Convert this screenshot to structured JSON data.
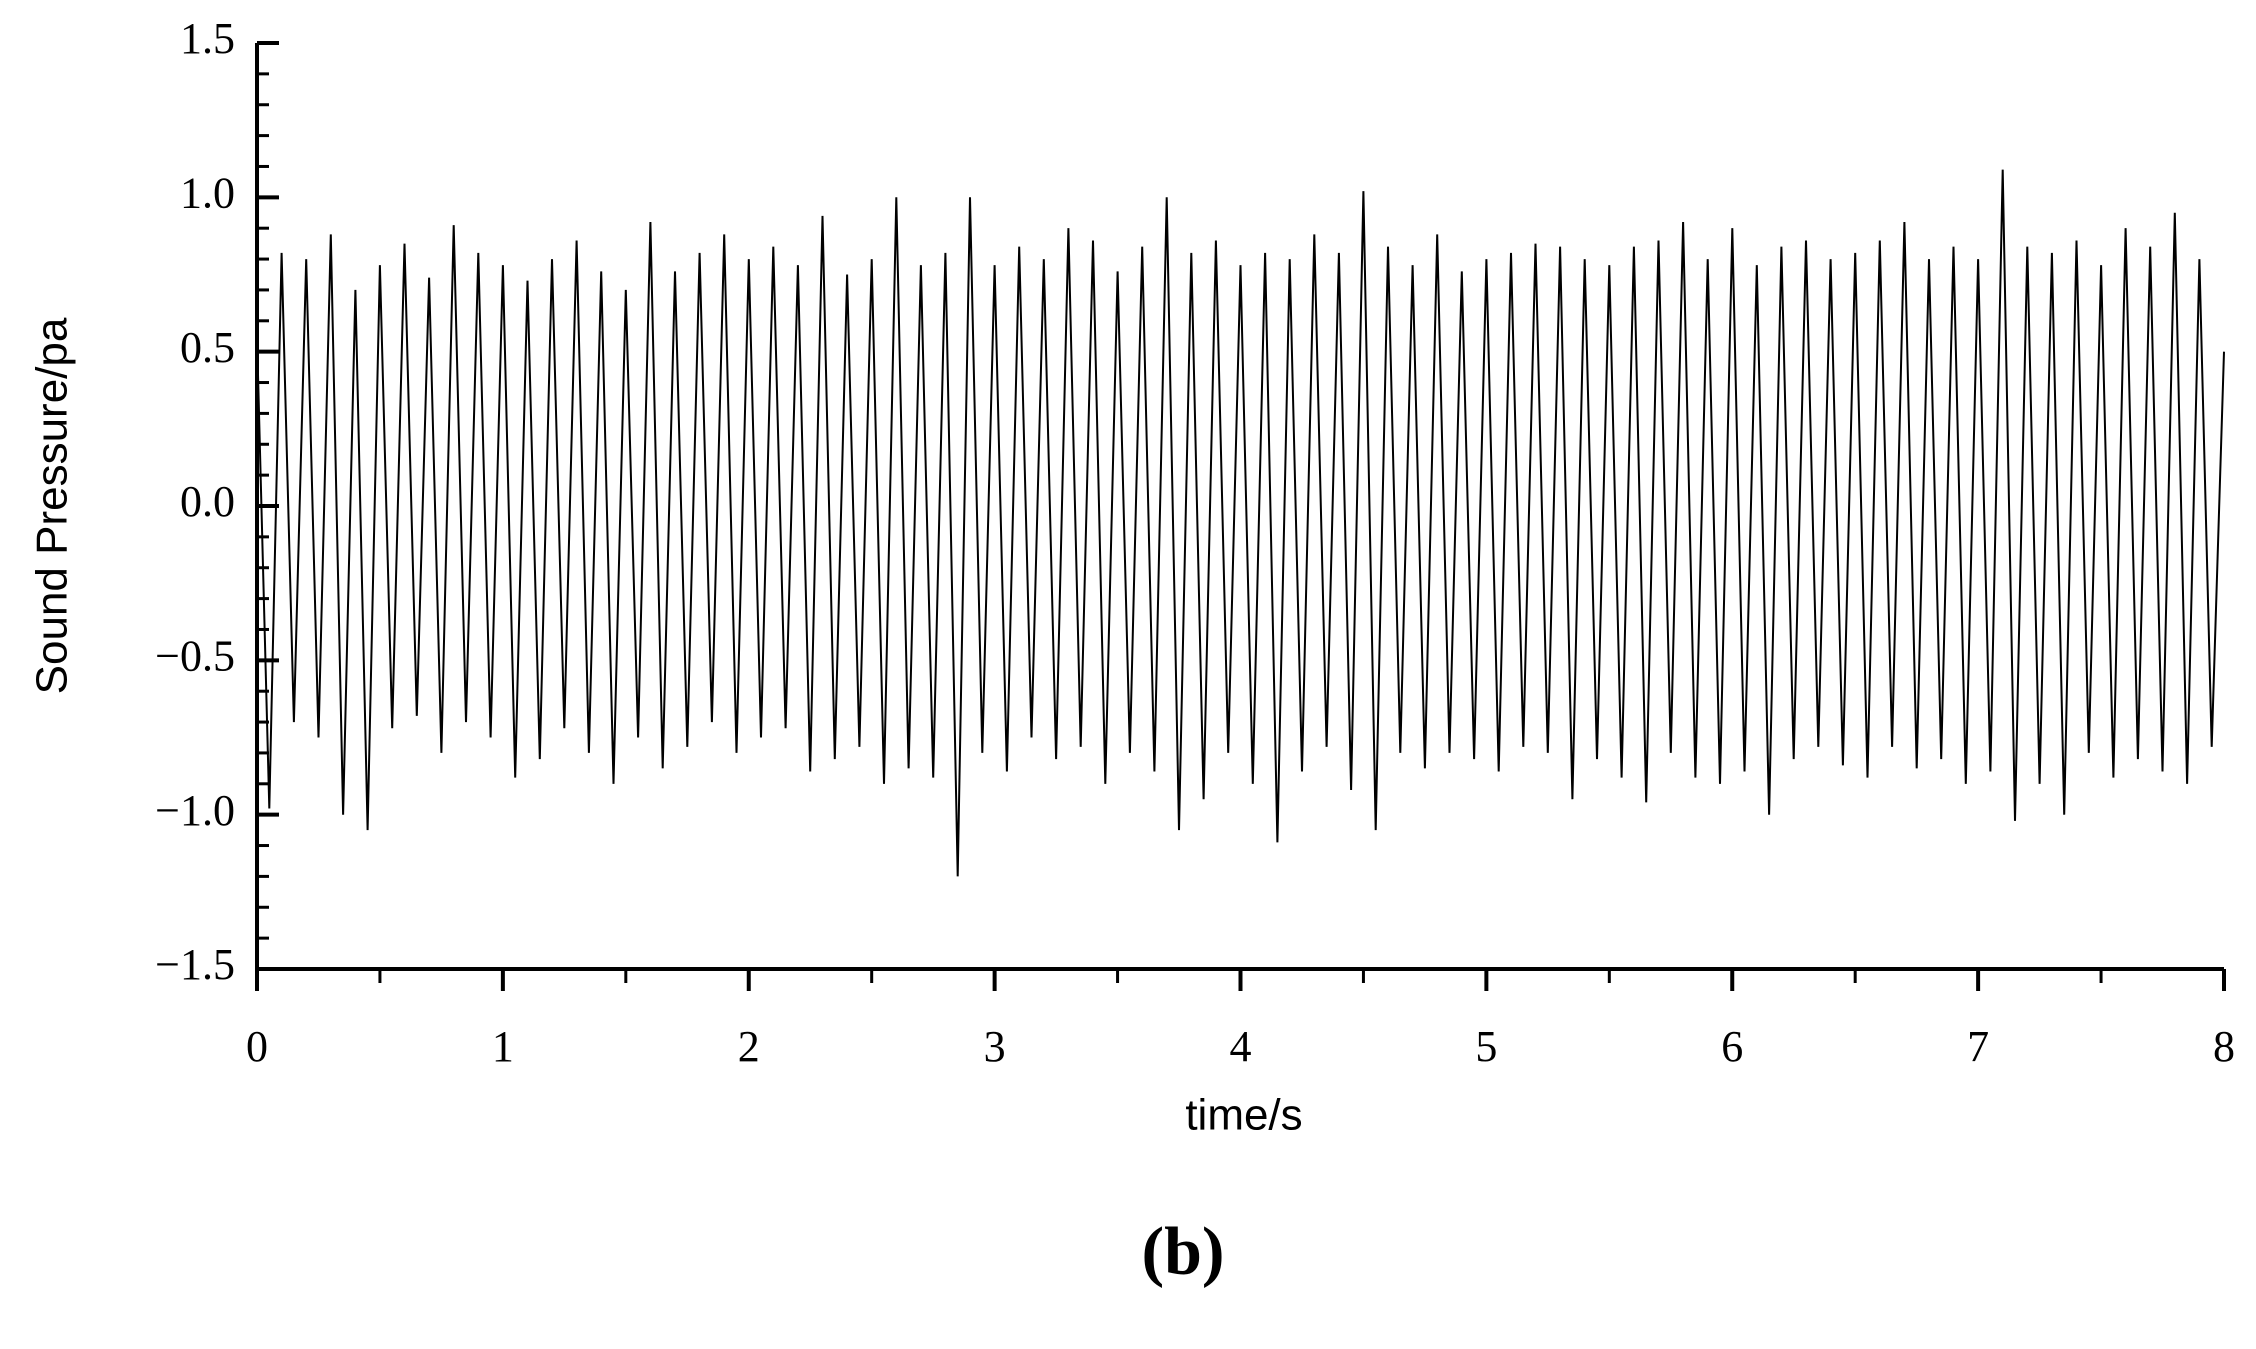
{
  "chart_data": {
    "type": "line",
    "caption": "(b)",
    "xlabel": "time/s",
    "ylabel": "Sound Pressure/pa",
    "color": "#000000",
    "xlim": [
      0,
      8
    ],
    "ylim": [
      -1.5,
      1.5
    ],
    "xticks": [
      0,
      1,
      2,
      3,
      4,
      5,
      6,
      7,
      8
    ],
    "xminorticks": [
      0.5,
      1.5,
      2.5,
      3.5,
      4.5,
      5.5,
      6.5,
      7.5
    ],
    "yticks": [
      {
        "value": -1.5,
        "label": "−1.5"
      },
      {
        "value": -1,
        "label": "−1.0"
      },
      {
        "value": -0.5,
        "label": "−0.5"
      },
      {
        "value": 0,
        "label": "0.0"
      },
      0.5,
      {
        "value": 1,
        "label": "1.0"
      },
      1.5
    ],
    "yminorticks": [
      -1.4,
      -1.3,
      -1.2,
      -1.1,
      -0.9,
      -0.8,
      -0.7,
      -0.6,
      -0.4,
      -0.3,
      -0.2,
      -0.1,
      0.1,
      0.2,
      0.3,
      0.4,
      0.6,
      0.7,
      0.8,
      0.9,
      1.1,
      1.2,
      1.3,
      1.4
    ],
    "x": [
      0,
      0.05,
      0.1,
      0.15,
      0.2,
      0.25,
      0.3,
      0.35,
      0.4,
      0.45,
      0.5,
      0.55,
      0.6,
      0.65,
      0.7,
      0.75,
      0.8,
      0.85,
      0.9,
      0.95,
      1,
      1.05,
      1.1,
      1.15,
      1.2,
      1.25,
      1.3,
      1.35,
      1.4,
      1.45,
      1.5,
      1.55,
      1.6,
      1.65,
      1.7,
      1.75,
      1.8,
      1.85,
      1.9,
      1.95,
      2,
      2.05,
      2.1,
      2.15,
      2.2,
      2.25,
      2.3,
      2.35,
      2.4,
      2.45,
      2.5,
      2.55,
      2.6,
      2.65,
      2.7,
      2.75,
      2.8,
      2.85,
      2.9,
      2.95,
      3,
      3.05,
      3.1,
      3.15,
      3.2,
      3.25,
      3.3,
      3.35,
      3.4,
      3.45,
      3.5,
      3.55,
      3.6,
      3.65,
      3.7,
      3.75,
      3.8,
      3.85,
      3.9,
      3.95,
      4,
      4.05,
      4.1,
      4.15,
      4.2,
      4.25,
      4.3,
      4.35,
      4.4,
      4.45,
      4.5,
      4.55,
      4.6,
      4.65,
      4.7,
      4.75,
      4.8,
      4.85,
      4.9,
      4.95,
      5,
      5.05,
      5.1,
      5.15,
      5.2,
      5.25,
      5.3,
      5.35,
      5.4,
      5.45,
      5.5,
      5.55,
      5.6,
      5.65,
      5.7,
      5.75,
      5.8,
      5.85,
      5.9,
      5.95,
      6,
      6.05,
      6.1,
      6.15,
      6.2,
      6.25,
      6.3,
      6.35,
      6.4,
      6.45,
      6.5,
      6.55,
      6.6,
      6.65,
      6.7,
      6.75,
      6.8,
      6.85,
      6.9,
      6.95,
      7,
      7.05,
      7.1,
      7.15,
      7.2,
      7.25,
      7.3,
      7.35,
      7.4,
      7.45,
      7.5,
      7.55,
      7.6,
      7.65,
      7.7,
      7.75,
      7.8,
      7.85,
      7.9,
      7.95,
      8
    ],
    "values": [
      0.55,
      -0.98,
      0.82,
      -0.7,
      0.8,
      -0.75,
      0.88,
      -1.0,
      0.7,
      -1.05,
      0.78,
      -0.72,
      0.85,
      -0.68,
      0.74,
      -0.8,
      0.91,
      -0.7,
      0.82,
      -0.75,
      0.78,
      -0.88,
      0.73,
      -0.82,
      0.8,
      -0.72,
      0.86,
      -0.8,
      0.76,
      -0.9,
      0.7,
      -0.75,
      0.92,
      -0.85,
      0.76,
      -0.78,
      0.82,
      -0.7,
      0.88,
      -0.8,
      0.8,
      -0.75,
      0.84,
      -0.72,
      0.78,
      -0.86,
      0.94,
      -0.82,
      0.75,
      -0.78,
      0.8,
      -0.9,
      1.0,
      -0.85,
      0.78,
      -0.88,
      0.82,
      -1.2,
      1.0,
      -0.8,
      0.78,
      -0.86,
      0.84,
      -0.75,
      0.8,
      -0.82,
      0.9,
      -0.78,
      0.86,
      -0.9,
      0.76,
      -0.8,
      0.84,
      -0.86,
      1.0,
      -1.05,
      0.82,
      -0.95,
      0.86,
      -0.8,
      0.78,
      -0.9,
      0.82,
      -1.09,
      0.8,
      -0.86,
      0.88,
      -0.78,
      0.82,
      -0.92,
      1.02,
      -1.05,
      0.84,
      -0.8,
      0.78,
      -0.85,
      0.88,
      -0.8,
      0.76,
      -0.82,
      0.8,
      -0.86,
      0.82,
      -0.78,
      0.85,
      -0.8,
      0.84,
      -0.95,
      0.8,
      -0.82,
      0.78,
      -0.88,
      0.84,
      -0.96,
      0.86,
      -0.8,
      0.92,
      -0.88,
      0.8,
      -0.9,
      0.9,
      -0.86,
      0.78,
      -1.0,
      0.84,
      -0.82,
      0.86,
      -0.78,
      0.8,
      -0.84,
      0.82,
      -0.88,
      0.86,
      -0.78,
      0.92,
      -0.85,
      0.8,
      -0.82,
      0.84,
      -0.9,
      0.8,
      -0.86,
      1.09,
      -1.02,
      0.84,
      -0.9,
      0.82,
      -1.0,
      0.86,
      -0.8,
      0.78,
      -0.88,
      0.9,
      -0.82,
      0.84,
      -0.86,
      0.95,
      -0.9,
      0.8,
      -0.78,
      0.5
    ]
  }
}
